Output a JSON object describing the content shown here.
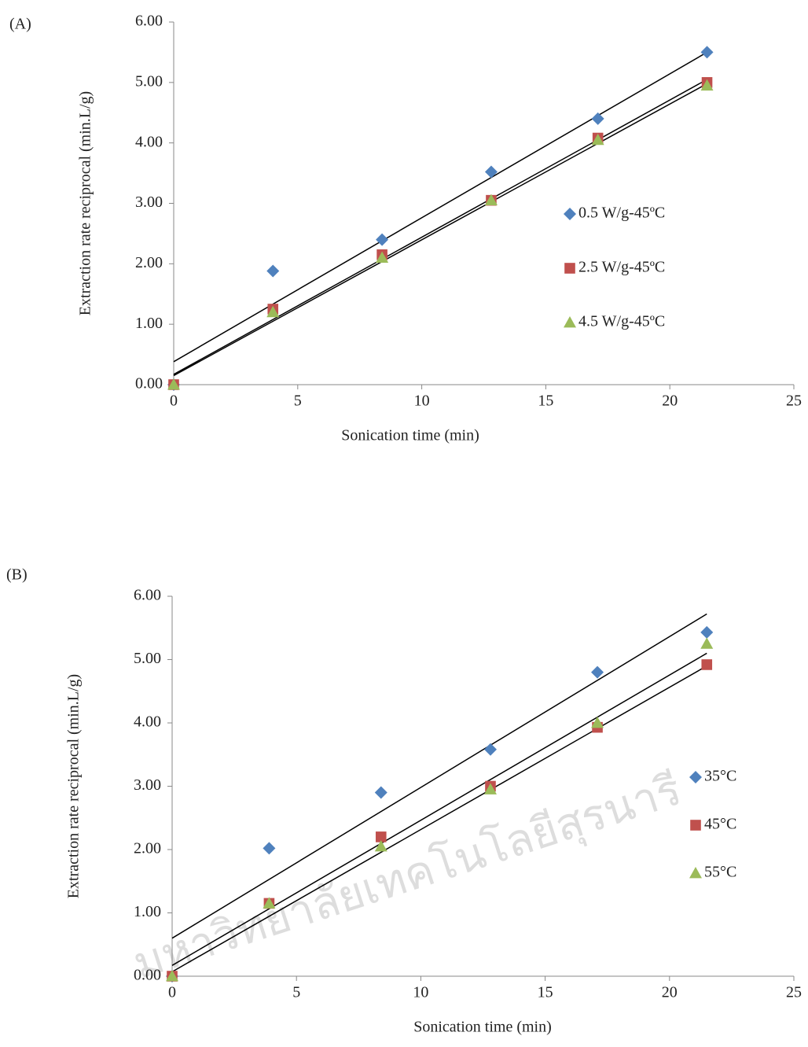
{
  "watermark": "มหาวิทยาลัยเทคโนโลยีสุรนารี",
  "chart_data": [
    {
      "type": "scatter",
      "panel": "(A)",
      "x_label": "Sonication  time  (min)",
      "y_label": "Extraction  rate reciprocal  (min.L/g)",
      "x": [
        0,
        4,
        8.4,
        12.8,
        17.1,
        21.5
      ],
      "trend_x": [
        0,
        21.5
      ],
      "series": [
        {
          "name": "0.5 W/g-45ºC",
          "color": "#4f81bd",
          "marker": "diamond",
          "values": [
            0,
            1.88,
            2.4,
            3.52,
            4.4,
            5.5
          ],
          "trend": [
            0.38,
            5.5
          ]
        },
        {
          "name": "2.5 W/g-45ºC",
          "color": "#c0504d",
          "marker": "square",
          "values": [
            0,
            1.25,
            2.15,
            3.05,
            4.08,
            5.0
          ],
          "trend": [
            0.17,
            5.05
          ]
        },
        {
          "name": "4.5 W/g-45ºC",
          "color": "#9bbb59",
          "marker": "triangle",
          "values": [
            0,
            1.2,
            2.1,
            3.05,
            4.05,
            4.95
          ],
          "trend": [
            0.15,
            4.98
          ]
        }
      ],
      "xlim": [
        0,
        25
      ],
      "xticks": [
        0,
        5,
        10,
        15,
        20,
        25
      ],
      "ylim": [
        0,
        6
      ],
      "yticks": [
        {
          "value": 0,
          "label": "0.00"
        },
        {
          "value": 1,
          "label": "1.00"
        },
        {
          "value": 2,
          "label": "2.00"
        },
        {
          "value": 3,
          "label": "3.00"
        },
        {
          "value": 4,
          "label": "4.00"
        },
        {
          "value": 5,
          "label": "5.00"
        },
        {
          "value": 6,
          "label": "6.00"
        }
      ]
    },
    {
      "type": "scatter",
      "panel": "(B)",
      "x_label": "Sonication  time  (min)",
      "y_label": "Extraction  rate reciprocal  (min.L/g)",
      "x": [
        0,
        3.9,
        8.4,
        12.8,
        17.1,
        21.5
      ],
      "trend_x": [
        0,
        21.5
      ],
      "series": [
        {
          "name": "35°C",
          "color": "#4f81bd",
          "marker": "diamond",
          "values": [
            0,
            2.02,
            2.9,
            3.58,
            4.8,
            5.43
          ],
          "trend": [
            0.6,
            5.72
          ]
        },
        {
          "name": "45°C",
          "color": "#c0504d",
          "marker": "square",
          "values": [
            0,
            1.15,
            2.2,
            3.0,
            3.93,
            4.92
          ],
          "trend": [
            0.07,
            4.9
          ]
        },
        {
          "name": "55°C",
          "color": "#9bbb59",
          "marker": "triangle",
          "values": [
            0,
            1.15,
            2.05,
            2.95,
            4.0,
            5.25
          ],
          "trend": [
            0.17,
            5.1
          ]
        }
      ],
      "xlim": [
        0,
        25
      ],
      "xticks": [
        0,
        5,
        10,
        15,
        20,
        25
      ],
      "ylim": [
        0,
        6
      ],
      "yticks": [
        {
          "value": 0,
          "label": "0.00"
        },
        {
          "value": 1,
          "label": "1.00"
        },
        {
          "value": 2,
          "label": "2.00"
        },
        {
          "value": 3,
          "label": "3.00"
        },
        {
          "value": 4,
          "label": "4.00"
        },
        {
          "value": 5,
          "label": "5.00"
        },
        {
          "value": 6,
          "label": "6.00"
        }
      ]
    }
  ]
}
